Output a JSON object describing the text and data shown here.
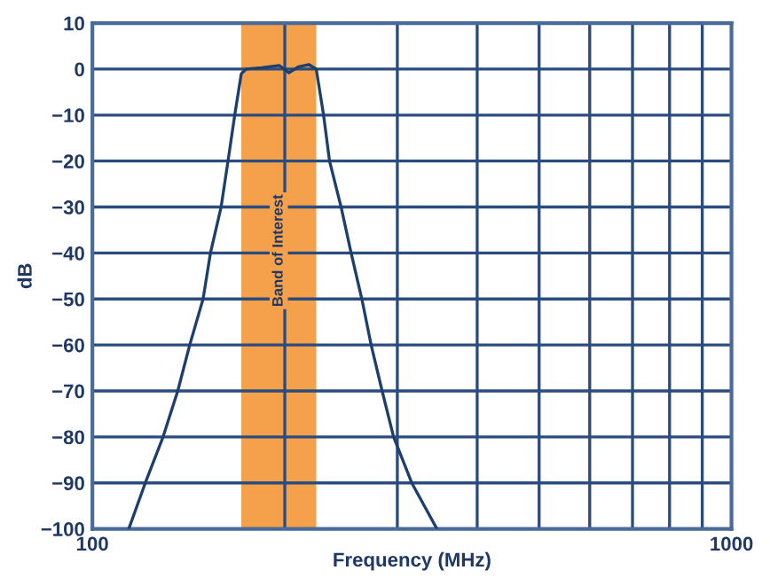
{
  "chart_data": {
    "type": "line",
    "xlabel": "Frequency (MHz)",
    "ylabel": "dB",
    "log": "x",
    "grid": true,
    "legend": false,
    "xlim": [
      100,
      1000
    ],
    "xticks": [
      100,
      {
        "value": 200,
        "label": null
      },
      {
        "value": 300,
        "label": null
      },
      {
        "value": 400,
        "label": null
      },
      {
        "value": 500,
        "label": null
      },
      {
        "value": 600,
        "label": null
      },
      {
        "value": 700,
        "label": null
      },
      {
        "value": 800,
        "label": null
      },
      {
        "value": 900,
        "label": null
      },
      1000
    ],
    "ylim": [
      -100,
      10
    ],
    "yticks": [
      10,
      0,
      -10,
      -20,
      -30,
      -40,
      -50,
      -60,
      -70,
      -80,
      -90,
      -100
    ],
    "bands": [
      {
        "axis": "x",
        "from": 171,
        "to": 224,
        "label": "Band of Interest",
        "color": "#f5a04a"
      }
    ],
    "series": [
      {
        "color": "#1c3f6e",
        "x": [
          114,
          121,
          129,
          136,
          142,
          149,
          153,
          159,
          163,
          167,
          171,
          174,
          184,
          196,
          203,
          210,
          218,
          224,
          230,
          235,
          245,
          254,
          264,
          273,
          284,
          296,
          316,
          346
        ],
        "values": [
          -100,
          -90,
          -80,
          -70,
          -60,
          -50,
          -40,
          -30,
          -20,
          -10,
          -1,
          0,
          0.3,
          0.8,
          -0.8,
          0.5,
          1,
          0,
          -10,
          -20,
          -30,
          -40,
          -50,
          -60,
          -70,
          -80,
          -90,
          -100
        ]
      }
    ]
  }
}
